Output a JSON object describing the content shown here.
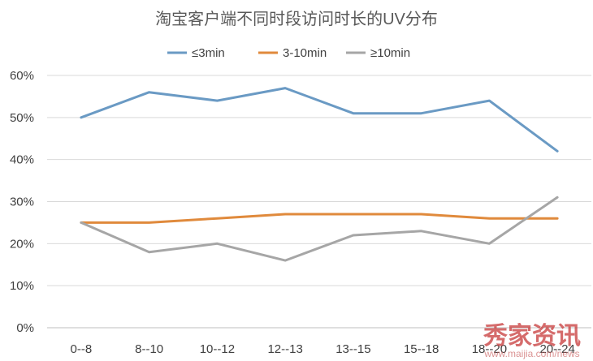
{
  "chart_data": {
    "type": "line",
    "title": "淘宝客户端不同时段访问时长的UV分布",
    "categories": [
      "0--8",
      "8--10",
      "10--12",
      "12--13",
      "13--15",
      "15--18",
      "18--20",
      "20--24"
    ],
    "series": [
      {
        "name": "≤3min",
        "color": "#6a9ac4",
        "values": [
          50,
          56,
          54,
          57,
          51,
          51,
          54,
          42
        ]
      },
      {
        "name": "3-10min",
        "color": "#e08a3c",
        "values": [
          25,
          25,
          26,
          27,
          27,
          27,
          26,
          26
        ]
      },
      {
        "name": "≥10min",
        "color": "#a6a6a6",
        "values": [
          25,
          18,
          20,
          16,
          22,
          23,
          20,
          31
        ]
      }
    ],
    "ylim": [
      0,
      60
    ],
    "yticks": [
      "0%",
      "10%",
      "20%",
      "30%",
      "40%",
      "50%",
      "60%"
    ],
    "legend_position": "top-center",
    "grid": true,
    "xlabel": "",
    "ylabel": ""
  },
  "watermark": {
    "main": "秀家资讯",
    "sub": "www.maijia.com/news"
  }
}
